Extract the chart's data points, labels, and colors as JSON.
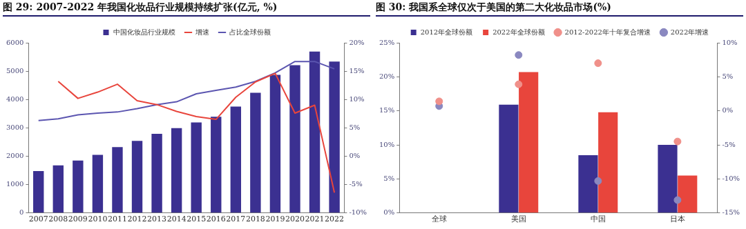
{
  "chart_data": [
    {
      "type": "bar",
      "title": "图 29: 2007-2022 年我国化妆品行业规模持续扩张(亿元, %)",
      "categories": [
        "2007",
        "2008",
        "2009",
        "2010",
        "2011",
        "2012",
        "2013",
        "2014",
        "2015",
        "2016",
        "2017",
        "2018",
        "2019",
        "2020",
        "2021",
        "2022"
      ],
      "series": [
        {
          "name": "中国化妆品行业规模",
          "color": "#3b3091",
          "values": [
            1480,
            1680,
            1850,
            2050,
            2320,
            2540,
            2790,
            2990,
            3190,
            3390,
            3750,
            4240,
            4870,
            5210,
            5690,
            5340
          ]
        },
        {
          "name": "增速",
          "type": "line",
          "axis": "y2",
          "color": "#e8453c",
          "values": [
            null,
            13.2,
            10.2,
            11.3,
            12.7,
            9.8,
            9.1,
            7.9,
            7.0,
            6.5,
            10.4,
            13.1,
            14.6,
            7.6,
            9.0,
            -6.4
          ]
        },
        {
          "name": "占比全球份额",
          "type": "line",
          "axis": "y2",
          "color": "#5b55b0",
          "values": [
            6.3,
            6.6,
            7.3,
            7.6,
            7.8,
            8.4,
            9.1,
            9.6,
            11.0,
            11.6,
            12.2,
            13.2,
            14.7,
            16.7,
            16.7,
            15.4
          ]
        }
      ],
      "ylim": [
        0,
        6000
      ],
      "yticks": [
        0,
        1000,
        2000,
        3000,
        4000,
        5000,
        6000
      ],
      "y2lim": [
        -10,
        20
      ],
      "y2ticks": [
        {
          "value": -10,
          "label": "-10%"
        },
        {
          "value": -5,
          "label": "-5%"
        },
        {
          "value": 0,
          "label": "0%"
        },
        {
          "value": 5,
          "label": "5%"
        },
        {
          "value": 10,
          "label": "10%"
        },
        {
          "value": 15,
          "label": "15%"
        },
        {
          "value": 20,
          "label": "20%"
        }
      ],
      "grid": false,
      "legend": "top",
      "marker": "none"
    },
    {
      "type": "bar",
      "title": "图 30: 我国系全球仅次于美国的第二大化妆品市场(%)",
      "categories": [
        "全球",
        "美国",
        "中国",
        "日本"
      ],
      "series": [
        {
          "name": "2012年全球份额",
          "color": "#3b3091",
          "values": [
            null,
            15.9,
            8.5,
            10.0
          ]
        },
        {
          "name": "2022年全球份额",
          "color": "#e8453c",
          "values": [
            null,
            20.7,
            14.8,
            5.5
          ]
        },
        {
          "name": "2012-2022年十年复合增速",
          "type": "scatter",
          "axis": "y2",
          "color": "#f0908a",
          "values": [
            1.4,
            3.9,
            7.0,
            -4.5
          ]
        },
        {
          "name": "2022年增速",
          "type": "scatter",
          "axis": "y2",
          "color": "#8a88c0",
          "values": [
            0.7,
            8.2,
            -10.3,
            -13.1
          ]
        }
      ],
      "ylim": [
        0,
        25
      ],
      "yticks": [
        {
          "value": 0,
          "label": "0%"
        },
        {
          "value": 5,
          "label": "5%"
        },
        {
          "value": 10,
          "label": "10%"
        },
        {
          "value": 15,
          "label": "15%"
        },
        {
          "value": 20,
          "label": "20%"
        },
        {
          "value": 25,
          "label": "25%"
        }
      ],
      "y2lim": [
        -15,
        10
      ],
      "y2ticks": [
        {
          "value": -15,
          "label": "-15%"
        },
        {
          "value": -10,
          "label": "-10%"
        },
        {
          "value": -5,
          "label": "-5%"
        },
        {
          "value": 0,
          "label": "0%"
        },
        {
          "value": 5,
          "label": "5%"
        },
        {
          "value": 10,
          "label": "10%"
        }
      ],
      "grid": false,
      "legend": "top",
      "marker": "circle"
    }
  ]
}
